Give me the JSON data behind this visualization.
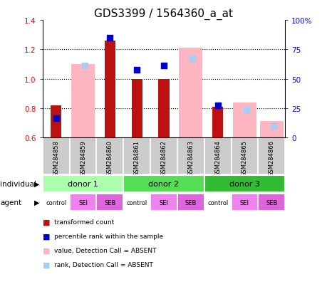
{
  "title": "GDS3399 / 1564360_a_at",
  "samples": [
    "GSM284858",
    "GSM284859",
    "GSM284860",
    "GSM284861",
    "GSM284862",
    "GSM284863",
    "GSM284864",
    "GSM284865",
    "GSM284866"
  ],
  "ylim": [
    0.6,
    1.4
  ],
  "ylim_right": [
    0,
    100
  ],
  "yticks_left": [
    0.6,
    0.8,
    1.0,
    1.2,
    1.4
  ],
  "yticks_right": [
    0,
    25,
    50,
    75,
    100
  ],
  "red_bars": [
    0.82,
    null,
    1.26,
    1.0,
    1.0,
    null,
    0.81,
    null,
    null
  ],
  "pink_bars": [
    null,
    1.1,
    null,
    null,
    null,
    1.21,
    null,
    0.84,
    0.71
  ],
  "blue_squares": [
    0.73,
    null,
    1.28,
    1.06,
    1.09,
    null,
    0.82,
    null,
    null
  ],
  "lightblue_squares": [
    null,
    1.09,
    null,
    null,
    null,
    1.14,
    null,
    0.79,
    0.68
  ],
  "donors": [
    {
      "label": "donor 1",
      "cols": [
        0,
        1,
        2
      ],
      "color": "#AAFFAA"
    },
    {
      "label": "donor 2",
      "cols": [
        3,
        4,
        5
      ],
      "color": "#55DD55"
    },
    {
      "label": "donor 3",
      "cols": [
        6,
        7,
        8
      ],
      "color": "#33BB33"
    }
  ],
  "agents": [
    "control",
    "SEI",
    "SEB",
    "control",
    "SEI",
    "SEB",
    "control",
    "SEI",
    "SEB"
  ],
  "agent_color_control": "#FFFFFF",
  "agent_color_sei_seb": "#EE82EE",
  "bar_width": 0.4,
  "square_size": 35,
  "red_color": "#BB1111",
  "pink_color": "#FFB6C1",
  "blue_color": "#0000CC",
  "lightblue_color": "#AACCEE",
  "bg_color": "#FFFFFF",
  "label_fontsize": 8,
  "tick_fontsize": 7.5,
  "title_fontsize": 11
}
